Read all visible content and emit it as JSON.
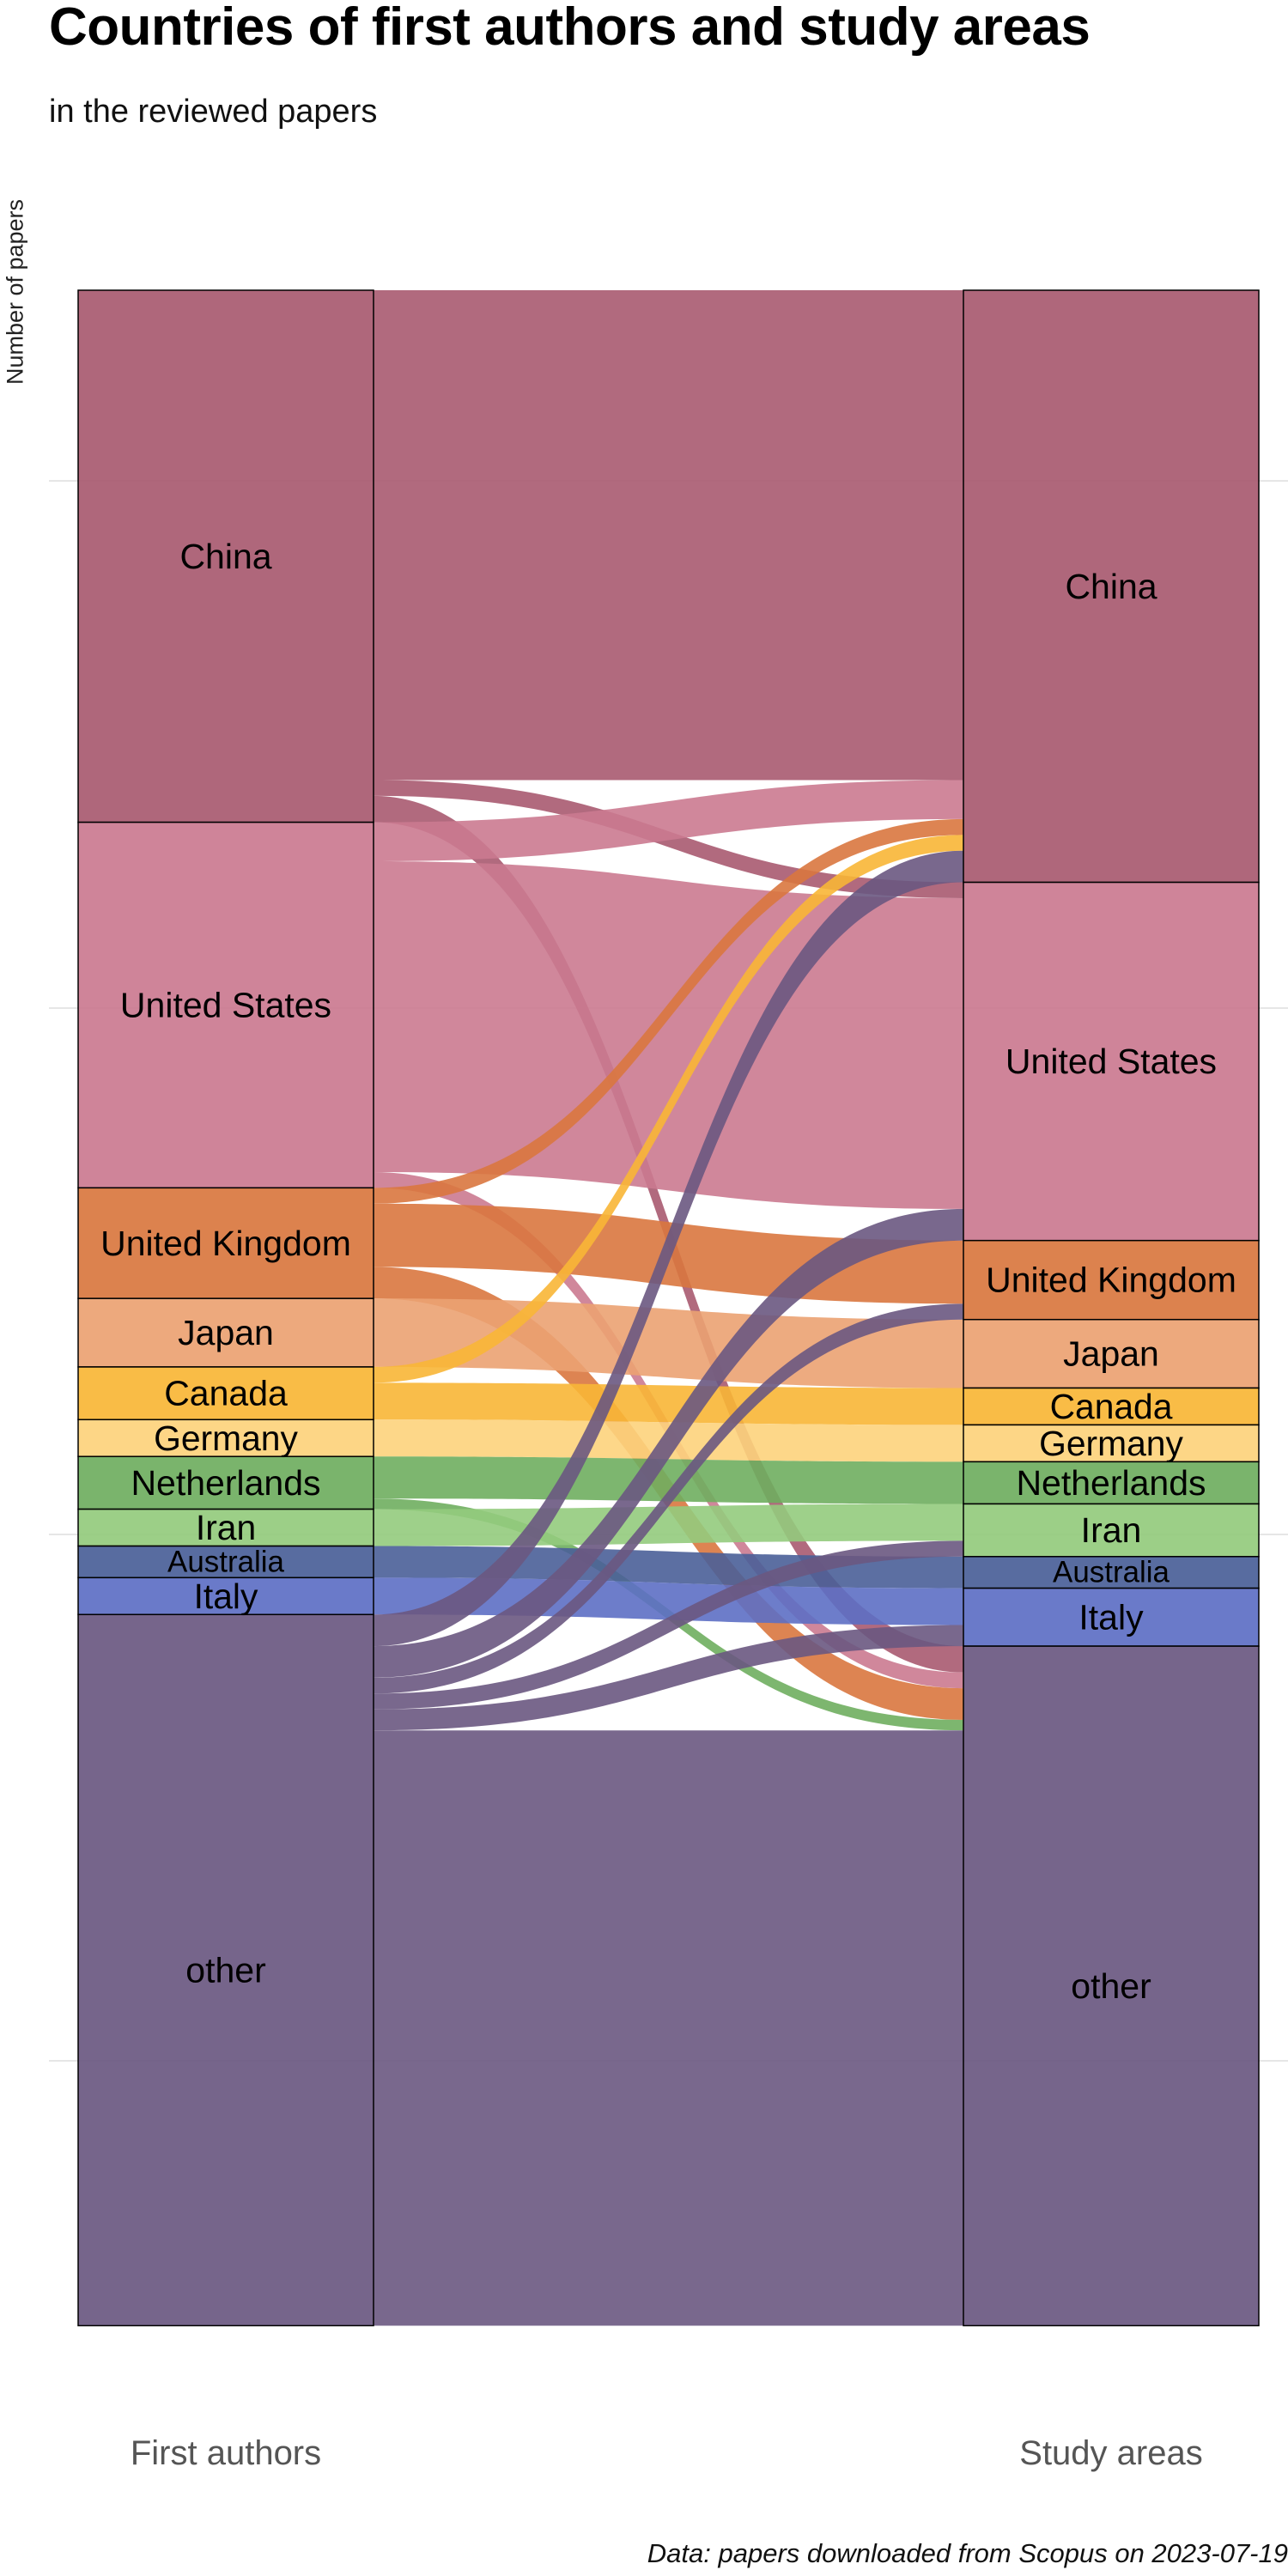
{
  "chart_data": {
    "type": "alluvial",
    "title": "Countries of first authors and study areas",
    "subtitle": "in the reviewed papers",
    "ylabel": "Number of papers",
    "axes": [
      "First authors",
      "Study areas"
    ],
    "caption": "Data: papers downloaded from Scopus on 2023-07-19",
    "grid": true,
    "y_range": [
      0,
      1930
    ],
    "categories": [
      "China",
      "United States",
      "United Kingdom",
      "Japan",
      "Canada",
      "Germany",
      "Netherlands",
      "Iran",
      "Australia",
      "Italy",
      "other"
    ],
    "colors": {
      "China": "#a85a70",
      "United States": "#cb7a90",
      "United Kingdom": "#d9773f",
      "Japan": "#eba272",
      "Canada": "#f8b636",
      "Germany": "#fdd37c",
      "Netherlands": "#6fae5f",
      "Iran": "#94cb7d",
      "Australia": "#4a5f98",
      "Italy": "#5d6fc4",
      "other": "#6a5881"
    },
    "flows": [
      {
        "from": "China",
        "to": "China",
        "value": 465
      },
      {
        "from": "China",
        "to": "United States",
        "value": 15
      },
      {
        "from": "China",
        "to": "other",
        "value": 25
      },
      {
        "from": "United States",
        "to": "China",
        "value": 37
      },
      {
        "from": "United States",
        "to": "United States",
        "value": 295
      },
      {
        "from": "United States",
        "to": "other",
        "value": 15
      },
      {
        "from": "United Kingdom",
        "to": "China",
        "value": 15
      },
      {
        "from": "United Kingdom",
        "to": "United Kingdom",
        "value": 60
      },
      {
        "from": "United Kingdom",
        "to": "other",
        "value": 30
      },
      {
        "from": "Japan",
        "to": "Japan",
        "value": 65
      },
      {
        "from": "Canada",
        "to": "China",
        "value": 15
      },
      {
        "from": "Canada",
        "to": "Canada",
        "value": 35
      },
      {
        "from": "Germany",
        "to": "Germany",
        "value": 35
      },
      {
        "from": "Netherlands",
        "to": "Netherlands",
        "value": 40
      },
      {
        "from": "Netherlands",
        "to": "other",
        "value": 10
      },
      {
        "from": "Iran",
        "to": "Iran",
        "value": 35
      },
      {
        "from": "Australia",
        "to": "Australia",
        "value": 30
      },
      {
        "from": "Italy",
        "to": "Italy",
        "value": 35
      },
      {
        "from": "other",
        "to": "China",
        "value": 30
      },
      {
        "from": "other",
        "to": "United States",
        "value": 30
      },
      {
        "from": "other",
        "to": "United Kingdom",
        "value": 15
      },
      {
        "from": "other",
        "to": "Iran",
        "value": 15
      },
      {
        "from": "other",
        "to": "Italy",
        "value": 20
      },
      {
        "from": "other",
        "to": "other",
        "value": 565
      }
    ]
  }
}
